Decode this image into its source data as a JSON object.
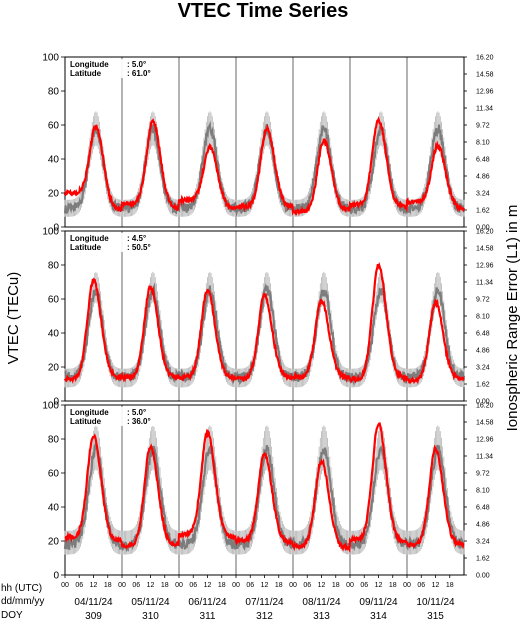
{
  "chart_data": {
    "type": "line",
    "title": "VTEC Time Series",
    "ylabel": "VTEC (TECu)",
    "y2label": "Ionospheric Range Error (L1) in m",
    "ylim": [
      0,
      100
    ],
    "y2lim": [
      0.0,
      16.2
    ],
    "yticks": [
      "0",
      "20",
      "40",
      "60",
      "80",
      "100"
    ],
    "y2ticks": [
      "0.00",
      "1.62",
      "3.24",
      "4.86",
      "6.48",
      "8.10",
      "9.72",
      "11.34",
      "12.96",
      "14.58",
      "16.20"
    ],
    "xlim": [
      0,
      168
    ],
    "xunit": "hours",
    "hour_ticks": [
      "00",
      "06",
      "12",
      "18"
    ],
    "row_labels": [
      "hh (UTC)",
      "dd/mm/yy",
      "DOY"
    ],
    "days": [
      {
        "date": "04/11/24",
        "doy": "309"
      },
      {
        "date": "05/11/24",
        "doy": "310"
      },
      {
        "date": "06/11/24",
        "doy": "311"
      },
      {
        "date": "07/11/24",
        "doy": "312"
      },
      {
        "date": "08/11/24",
        "doy": "313"
      },
      {
        "date": "09/11/24",
        "doy": "314"
      },
      {
        "date": "10/11/24",
        "doy": "315"
      }
    ],
    "series_colors": {
      "vtec": "#ff0000",
      "reference": "#6e6e6e",
      "reference_band": "#b4b4b4"
    },
    "panels": [
      {
        "longitude_label": "Longitude",
        "longitude": ":  5.0°",
        "latitude_label": "Latitude",
        "latitude": ": 61.0°",
        "vtec": {
          "night": [
            20,
            14,
            16,
            12,
            9,
            13,
            15
          ],
          "peak": [
            59,
            62,
            47,
            58,
            51,
            63,
            48
          ],
          "peak_hour": [
            13,
            13,
            13,
            13,
            13,
            12,
            13
          ],
          "evening": [
            10,
            11,
            11,
            12,
            10,
            12,
            11
          ]
        },
        "reference": {
          "night": 11,
          "peak": 58,
          "peak_hour": 13,
          "band": [
            [
              6,
              16
            ],
            [
              48,
              68
            ]
          ]
        }
      },
      {
        "longitude_label": "Longitude",
        "longitude": ":  4.5°",
        "latitude_label": "Latitude",
        "latitude": ": 50.5°",
        "vtec": {
          "night": [
            13,
            14,
            14,
            13,
            14,
            13,
            12
          ],
          "peak": [
            71,
            67,
            65,
            62,
            59,
            80,
            58
          ],
          "peak_hour": [
            12,
            12,
            12,
            12,
            12,
            12,
            12
          ],
          "evening": [
            14,
            14,
            14,
            14,
            14,
            14,
            13
          ]
        },
        "reference": {
          "night": 14,
          "peak": 65,
          "peak_hour": 13,
          "band": [
            [
              8,
              19
            ],
            [
              58,
              76
            ]
          ]
        }
      },
      {
        "longitude_label": "Longitude",
        "longitude": ":  5.0°",
        "latitude_label": "Latitude",
        "latitude": ": 36.0°",
        "vtec": {
          "night": [
            22,
            17,
            24,
            20,
            17,
            21,
            18
          ],
          "peak": [
            82,
            75,
            84,
            71,
            67,
            89,
            74
          ],
          "peak_hour": [
            12,
            12,
            12,
            12,
            12,
            12,
            12
          ],
          "evening": [
            20,
            18,
            22,
            19,
            16,
            20,
            18
          ]
        },
        "reference": {
          "night": 18,
          "peak": 74,
          "peak_hour": 13,
          "band": [
            [
              12,
              26
            ],
            [
              62,
              88
            ]
          ]
        }
      }
    ]
  }
}
